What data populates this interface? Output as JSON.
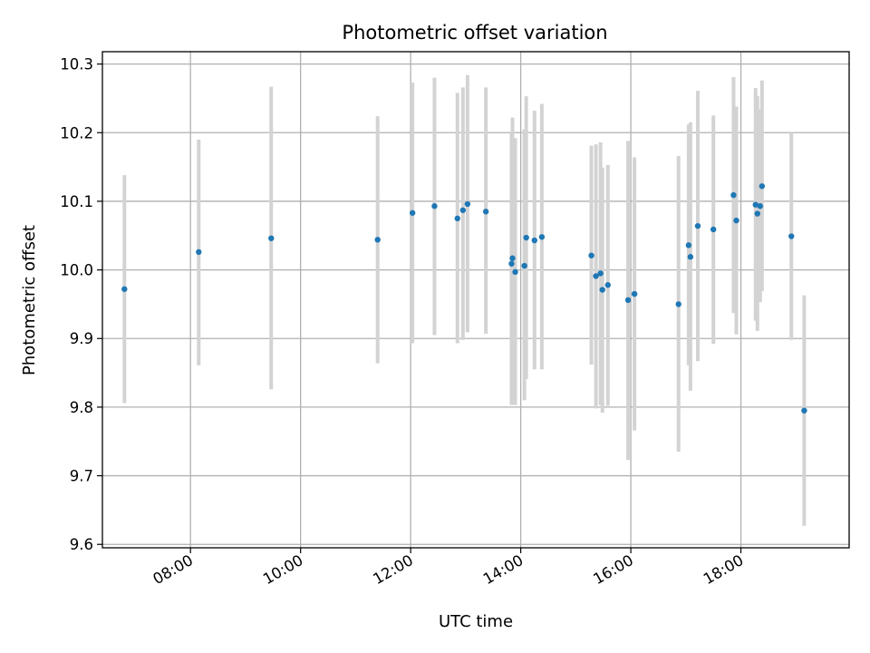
{
  "chart_data": {
    "type": "scatter",
    "title": "Photometric offset variation",
    "xlabel": "UTC time",
    "ylabel": "Photometric offset",
    "x_unit": "time of day (UTC)",
    "xlim": [
      "06:24",
      "19:58"
    ],
    "ylim": [
      9.595,
      10.318
    ],
    "grid": true,
    "legend": "none",
    "marker_color": "#1f77b4",
    "errorbar_color": "#d3d3d3",
    "x_ticks": [
      "08:00",
      "10:00",
      "12:00",
      "14:00",
      "16:00",
      "18:00"
    ],
    "y_ticks": [
      9.6,
      9.7,
      9.8,
      9.9,
      10.0,
      10.1,
      10.2,
      10.3
    ],
    "y_tick_labels": [
      "9.6",
      "9.7",
      "9.8",
      "9.9",
      "10.0",
      "10.1",
      "10.2",
      "10.3"
    ],
    "points": [
      {
        "x": "06:48",
        "y": 9.972,
        "err_low": 9.806,
        "err_high": 10.138
      },
      {
        "x": "08:09",
        "y": 10.026,
        "err_low": 9.861,
        "err_high": 10.19
      },
      {
        "x": "09:28",
        "y": 10.046,
        "err_low": 9.826,
        "err_high": 10.267
      },
      {
        "x": "11:24",
        "y": 10.044,
        "err_low": 9.864,
        "err_high": 10.224
      },
      {
        "x": "12:02",
        "y": 10.083,
        "err_low": 9.893,
        "err_high": 10.273
      },
      {
        "x": "12:26",
        "y": 10.093,
        "err_low": 9.905,
        "err_high": 10.28
      },
      {
        "x": "12:51",
        "y": 10.075,
        "err_low": 9.893,
        "err_high": 10.258
      },
      {
        "x": "12:57",
        "y": 10.087,
        "err_low": 9.898,
        "err_high": 10.266
      },
      {
        "x": "13:02",
        "y": 10.096,
        "err_low": 9.909,
        "err_high": 10.284
      },
      {
        "x": "13:22",
        "y": 10.085,
        "err_low": 9.907,
        "err_high": 10.266
      },
      {
        "x": "13:50",
        "y": 10.009,
        "err_low": 9.803,
        "err_high": 10.2
      },
      {
        "x": "13:51",
        "y": 10.017,
        "err_low": 9.806,
        "err_high": 10.222
      },
      {
        "x": "13:54",
        "y": 9.997,
        "err_low": 9.803,
        "err_high": 10.192
      },
      {
        "x": "14:04",
        "y": 10.006,
        "err_low": 9.81,
        "err_high": 10.205
      },
      {
        "x": "14:06",
        "y": 10.047,
        "err_low": 9.841,
        "err_high": 10.253
      },
      {
        "x": "14:15",
        "y": 10.043,
        "err_low": 9.855,
        "err_high": 10.232
      },
      {
        "x": "14:23",
        "y": 10.048,
        "err_low": 9.855,
        "err_high": 10.242
      },
      {
        "x": "15:17",
        "y": 10.021,
        "err_low": 9.862,
        "err_high": 10.181
      },
      {
        "x": "15:22",
        "y": 9.991,
        "err_low": 9.798,
        "err_high": 10.183
      },
      {
        "x": "15:27",
        "y": 9.995,
        "err_low": 9.803,
        "err_high": 10.186
      },
      {
        "x": "15:29",
        "y": 9.971,
        "err_low": 9.792,
        "err_high": 10.149
      },
      {
        "x": "15:35",
        "y": 9.978,
        "err_low": 9.802,
        "err_high": 10.153
      },
      {
        "x": "15:57",
        "y": 9.956,
        "err_low": 9.723,
        "err_high": 10.188
      },
      {
        "x": "16:04",
        "y": 9.965,
        "err_low": 9.766,
        "err_high": 10.164
      },
      {
        "x": "16:52",
        "y": 9.95,
        "err_low": 9.735,
        "err_high": 10.166
      },
      {
        "x": "17:03",
        "y": 10.036,
        "err_low": 9.861,
        "err_high": 10.212
      },
      {
        "x": "17:05",
        "y": 10.019,
        "err_low": 9.824,
        "err_high": 10.215
      },
      {
        "x": "17:13",
        "y": 10.064,
        "err_low": 9.867,
        "err_high": 10.261
      },
      {
        "x": "17:30",
        "y": 10.059,
        "err_low": 9.892,
        "err_high": 10.225
      },
      {
        "x": "17:52",
        "y": 10.109,
        "err_low": 9.937,
        "err_high": 10.281
      },
      {
        "x": "17:55",
        "y": 10.072,
        "err_low": 9.906,
        "err_high": 10.238
      },
      {
        "x": "18:16",
        "y": 10.095,
        "err_low": 9.926,
        "err_high": 10.265
      },
      {
        "x": "18:18",
        "y": 10.082,
        "err_low": 9.911,
        "err_high": 10.253
      },
      {
        "x": "18:21",
        "y": 10.093,
        "err_low": 9.953,
        "err_high": 10.234
      },
      {
        "x": "18:23",
        "y": 10.122,
        "err_low": 9.969,
        "err_high": 10.276
      },
      {
        "x": "18:55",
        "y": 10.049,
        "err_low": 9.898,
        "err_high": 10.2
      },
      {
        "x": "19:09",
        "y": 9.795,
        "err_low": 9.627,
        "err_high": 9.963
      }
    ]
  }
}
